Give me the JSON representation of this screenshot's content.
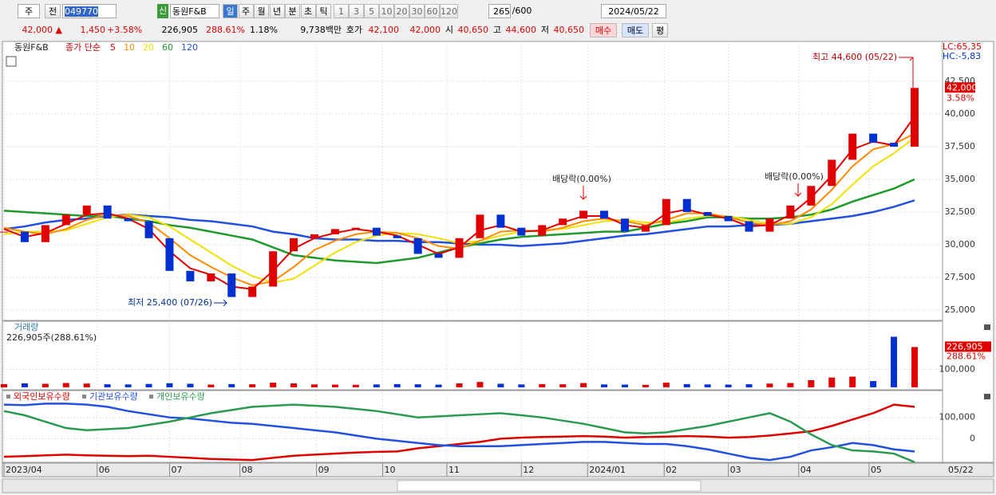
{
  "toolbar": {
    "market": "주",
    "prev": "전",
    "code": "049770",
    "new": "신",
    "name": "동원F&B",
    "periods": [
      "일",
      "주",
      "월",
      "년",
      "분",
      "초",
      "틱"
    ],
    "intervals": [
      "1",
      "3",
      "5",
      "10",
      "20",
      "30",
      "60",
      "120"
    ],
    "count": "265",
    "max": "/600",
    "date": "2024/05/22"
  },
  "quote": {
    "price": "42,000 ▲",
    "change": "1,450",
    "rate": "+3.58%",
    "volume": "226,905",
    "vol_ratio": "288.61%",
    "turnover": "1.18%",
    "amount": "9,738백만",
    "bid_label": "호가",
    "ask": "42,100",
    "bid": "42,000",
    "open_label": "시",
    "open": "40,650",
    "high_label": "고",
    "high": "44,600",
    "low_label": "저",
    "low": "40,650",
    "buy": "매수",
    "sell": "매도",
    "avg": "평"
  },
  "chart_data": [
    {
      "type": "candlestick",
      "name": "동원F&B",
      "ma_label": "종가 단순",
      "xlim": [
        0,
        44
      ],
      "ylim": [
        24330,
        45370
      ],
      "yticks": [
        {
          "value": 25000,
          "label": "25,000"
        },
        {
          "value": 27500,
          "label": "27,500"
        },
        {
          "value": 30000,
          "label": "30,000"
        },
        {
          "value": 32500,
          "label": "32,500"
        },
        {
          "value": 35000,
          "label": "35,000"
        },
        {
          "value": 37500,
          "label": "37,500"
        },
        {
          "value": 40000,
          "label": "40,000"
        },
        {
          "value": 42500,
          "label": "42,500"
        }
      ],
      "grid": true,
      "up_color": "#e00000",
      "down_color": "#0030d0",
      "close": [
        31000,
        30200,
        31500,
        32300,
        33000,
        32000,
        31800,
        30500,
        28000,
        27200,
        27800,
        26000,
        26800,
        29500,
        30500,
        30800,
        31200,
        31300,
        30700,
        30500,
        29300,
        29000,
        30500,
        32300,
        31300,
        30700,
        31500,
        32000,
        32600,
        32000,
        31000,
        31500,
        33500,
        32500,
        32200,
        31800,
        31000,
        32000,
        33000,
        34500,
        36500,
        38500,
        37800,
        37500,
        42000
      ],
      "series": [
        {
          "name": "5",
          "color": "#e00000",
          "values": [
            31200,
            30600,
            30900,
            31600,
            32300,
            32400,
            32000,
            31200,
            29500,
            28200,
            27700,
            26800,
            26600,
            28000,
            29700,
            30500,
            30900,
            31200,
            31000,
            30700,
            30000,
            29300,
            29800,
            31100,
            31500,
            31000,
            31100,
            31700,
            32200,
            32200,
            31500,
            31300,
            32400,
            32700,
            32300,
            32000,
            31400,
            31500,
            32300,
            33600,
            35300,
            37300,
            37900,
            37600,
            39800
          ]
        },
        {
          "name": "10",
          "color": "#ff8a00",
          "values": [
            31300,
            31000,
            30800,
            31200,
            31900,
            32300,
            32200,
            31700,
            30500,
            29200,
            28300,
            27500,
            26900,
            27200,
            28300,
            29600,
            30300,
            30800,
            31000,
            30900,
            30500,
            29900,
            29700,
            30300,
            31000,
            31100,
            31000,
            31300,
            31800,
            32000,
            31800,
            31500,
            31900,
            32400,
            32400,
            32100,
            31700,
            31500,
            31800,
            32700,
            34200,
            36000,
            37300,
            37700,
            38500
          ]
        },
        {
          "name": "20",
          "color": "#f2e000",
          "values": [
            30800,
            31000,
            31000,
            31100,
            31600,
            32100,
            32300,
            32100,
            31400,
            30400,
            29400,
            28400,
            27600,
            27100,
            27400,
            28400,
            29400,
            30200,
            30700,
            30900,
            30800,
            30500,
            30100,
            30300,
            30700,
            31000,
            31100,
            31200,
            31500,
            31800,
            31900,
            31700,
            31700,
            32000,
            32200,
            32200,
            31900,
            31600,
            31600,
            32100,
            33100,
            34600,
            36000,
            37000,
            38200
          ]
        },
        {
          "name": "60",
          "color": "#1e9a2a",
          "values": [
            32600,
            32500,
            32400,
            32300,
            32200,
            32200,
            32000,
            31800,
            31500,
            31300,
            31000,
            30700,
            30400,
            29800,
            29200,
            29000,
            28800,
            28700,
            28600,
            28800,
            29000,
            29400,
            29800,
            30100,
            30400,
            30600,
            30700,
            30800,
            30900,
            31000,
            31000,
            31300,
            31600,
            31800,
            32100,
            32100,
            32000,
            32000,
            32100,
            32300,
            32700,
            33300,
            33800,
            34300,
            35000
          ]
        },
        {
          "name": "120",
          "color": "#2050e0",
          "values": [
            31200,
            31400,
            31700,
            31900,
            32000,
            32200,
            32300,
            32200,
            32100,
            31900,
            31800,
            31600,
            31400,
            31000,
            30800,
            30500,
            30400,
            30400,
            30300,
            30300,
            30200,
            30200,
            30100,
            30000,
            30000,
            29900,
            30000,
            30100,
            30300,
            30500,
            30700,
            30800,
            31000,
            31200,
            31400,
            31400,
            31500,
            31500,
            31600,
            31800,
            32000,
            32200,
            32500,
            32900,
            33400
          ]
        }
      ],
      "current_label": "42,000",
      "current_ratio": "3.58%",
      "lc": "LC:65,35",
      "hc": "HC:-5,83",
      "annotations": [
        "최고 44,600 (05/22)",
        "최저 25,400 (07/26)",
        "배당락(0.00%)",
        "배당락(0.00%)"
      ]
    },
    {
      "type": "bar",
      "name": "거래량",
      "subtitle": "226,905주(288.61%)",
      "xlim": [
        0,
        44
      ],
      "ylim": [
        -14000,
        341000
      ],
      "yticks": [
        {
          "value": 100000,
          "label": "100,000"
        }
      ],
      "values": [
        18000,
        22000,
        20000,
        24000,
        21000,
        17000,
        16000,
        19000,
        23000,
        20000,
        15000,
        18000,
        17000,
        26000,
        22000,
        16000,
        15000,
        14000,
        16000,
        18000,
        17000,
        15000,
        22000,
        30000,
        20000,
        16000,
        18000,
        17000,
        24000,
        16000,
        15000,
        14000,
        26000,
        18000,
        16000,
        15000,
        17000,
        21000,
        24000,
        40000,
        55000,
        60000,
        35000,
        285000,
        226905
      ],
      "current_label": "226,905",
      "current_ratio": "288.61%"
    },
    {
      "type": "line",
      "xlim": [
        0,
        44
      ],
      "ylim": [
        -111000,
        215000
      ],
      "yticks": [
        {
          "value": 100000,
          "label": "100,000"
        },
        0
      ],
      "series": [
        {
          "name": "외국인보유수량",
          "color": "#e00000",
          "values": [
            -85000,
            -82000,
            -78000,
            -75000,
            -78000,
            -80000,
            -82000,
            -80000,
            -85000,
            -90000,
            -95000,
            -98000,
            -100000,
            -90000,
            -80000,
            -75000,
            -70000,
            -65000,
            -62000,
            -60000,
            -45000,
            -35000,
            -25000,
            -15000,
            0,
            5000,
            8000,
            10000,
            12000,
            10000,
            5000,
            8000,
            10000,
            12000,
            10000,
            5000,
            8000,
            15000,
            25000,
            35000,
            60000,
            90000,
            120000,
            160000,
            150000
          ]
        },
        {
          "name": "기관보유수량",
          "color": "#2050e0",
          "values": [
            160000,
            158000,
            165000,
            165000,
            160000,
            150000,
            130000,
            115000,
            100000,
            95000,
            85000,
            75000,
            70000,
            60000,
            50000,
            40000,
            30000,
            15000,
            0,
            -10000,
            -20000,
            -30000,
            -35000,
            -35000,
            -35000,
            -30000,
            -25000,
            -20000,
            -15000,
            -15000,
            -20000,
            -25000,
            -25000,
            -35000,
            -50000,
            -70000,
            -90000,
            -100000,
            -85000,
            -55000,
            -40000,
            -20000,
            -30000,
            -50000,
            -60000
          ]
        },
        {
          "name": "개인보유수량",
          "color": "#2a9a50",
          "values": [
            130000,
            110000,
            80000,
            50000,
            40000,
            45000,
            50000,
            65000,
            80000,
            100000,
            120000,
            135000,
            150000,
            155000,
            160000,
            155000,
            150000,
            140000,
            130000,
            115000,
            100000,
            105000,
            110000,
            115000,
            120000,
            110000,
            100000,
            85000,
            70000,
            50000,
            30000,
            25000,
            30000,
            45000,
            60000,
            80000,
            100000,
            120000,
            80000,
            20000,
            -30000,
            -55000,
            -60000,
            -70000,
            -110000
          ]
        }
      ],
      "xticks": [
        {
          "value": 0,
          "label": "2023/04"
        },
        {
          "value": 4.5,
          "label": "06"
        },
        {
          "value": 8,
          "label": "07"
        },
        {
          "value": 11.4,
          "label": "08"
        },
        {
          "value": 15.1,
          "label": "09"
        },
        {
          "value": 18.3,
          "label": "10"
        },
        {
          "value": 21.4,
          "label": "11"
        },
        {
          "value": 25,
          "label": "12"
        },
        {
          "value": 28.2,
          "label": "2024/01"
        },
        {
          "value": 31.9,
          "label": "02"
        },
        {
          "value": 35,
          "label": "03"
        },
        {
          "value": 38.4,
          "label": "04"
        },
        {
          "value": 41.8,
          "label": "05"
        }
      ],
      "last_label": "05/22"
    }
  ]
}
